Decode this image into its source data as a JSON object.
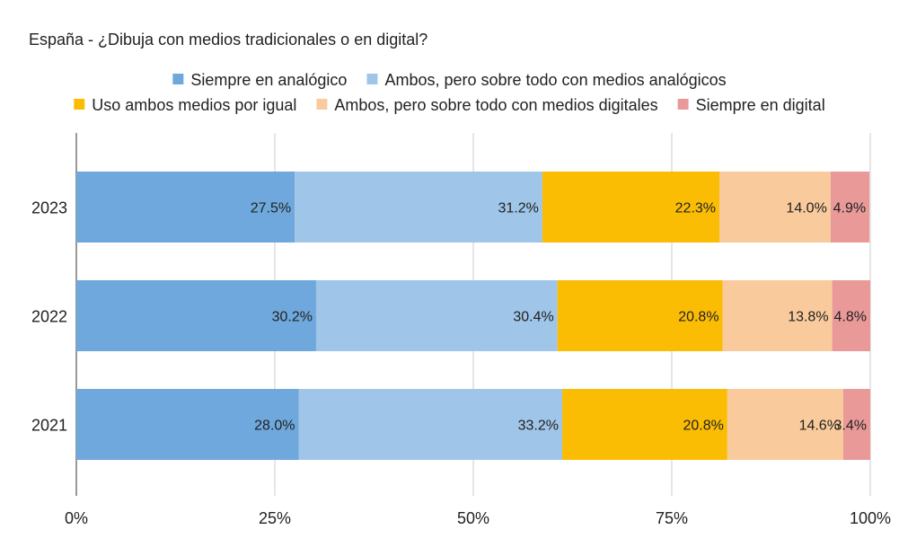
{
  "chart_data": {
    "type": "bar",
    "orientation": "horizontal",
    "stacked": "percent",
    "title": "España - ¿Dibuja con medios tradicionales o en digital?",
    "categories": [
      "2023",
      "2022",
      "2021"
    ],
    "series": [
      {
        "name": "Siempre en analógico",
        "color": "#6fa8dc",
        "values": [
          27.5,
          30.2,
          28.0
        ],
        "labels": [
          "27.5%",
          "30.2%",
          "28.0%"
        ]
      },
      {
        "name": "Ambos, pero sobre todo con medios analógicos",
        "color": "#9fc5e8",
        "values": [
          31.2,
          30.4,
          33.2
        ],
        "labels": [
          "31.2%",
          "30.4%",
          "33.2%"
        ]
      },
      {
        "name": "Uso ambos medios por igual",
        "color": "#fbbc04",
        "values": [
          22.3,
          20.8,
          20.8
        ],
        "labels": [
          "22.3%",
          "20.8%",
          "20.8%"
        ]
      },
      {
        "name": "Ambos, pero sobre todo con medios digitales",
        "color": "#f9cb9c",
        "values": [
          14.0,
          13.8,
          14.6
        ],
        "labels": [
          "14.0%",
          "13.8%",
          "14.6%"
        ]
      },
      {
        "name": "Siempre en digital",
        "color": "#ea9999",
        "values": [
          4.9,
          4.8,
          3.4
        ],
        "labels": [
          "4.9%",
          "4.8%",
          "3.4%"
        ]
      }
    ],
    "xlim": [
      0,
      100
    ],
    "xticks": [
      "0%",
      "25%",
      "50%",
      "75%",
      "100%"
    ],
    "grid": true,
    "legend_position": "top"
  }
}
